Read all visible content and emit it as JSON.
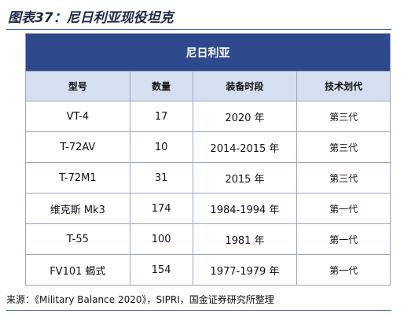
{
  "header": {
    "title": "图表37：尼日利亚现役坦克"
  },
  "table": {
    "title": "尼日利亚",
    "columns": [
      "型号",
      "数量",
      "装备时段",
      "技术划代"
    ],
    "rows": [
      [
        "VT-4",
        17,
        "2020 年",
        "第三代"
      ],
      [
        "T-72AV",
        10,
        "2014-2015 年",
        "第三代"
      ],
      [
        "T-72M1",
        31,
        "2015 年",
        "第三代"
      ],
      [
        "维克斯 Mk3",
        174,
        "1984-1994 年",
        "第一代"
      ],
      [
        "T-55",
        100,
        "1981 年",
        "第一代"
      ],
      [
        "FV101 蝎式",
        154,
        "1977-1979 年",
        "第一代"
      ]
    ]
  },
  "footer": {
    "source": "来源：《Military Balance 2020》，SIPRI，国金证券研究所整理"
  }
}
